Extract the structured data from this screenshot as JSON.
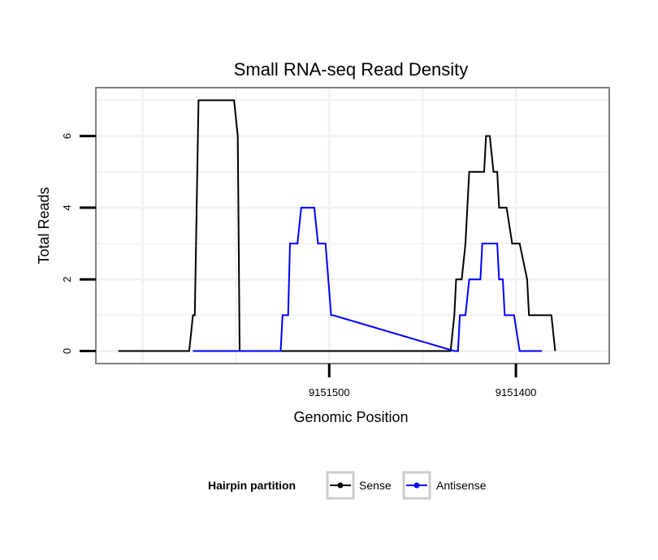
{
  "chart_data": {
    "type": "line",
    "title": "Small RNA-seq Read Density",
    "xlabel": "Genomic Position",
    "ylabel": "Total Reads",
    "x_reversed": true,
    "xlim": [
      9151625,
      9151350
    ],
    "ylim": [
      -0.35,
      7.35
    ],
    "x_ticks": [
      9151500,
      9151400
    ],
    "x_tick_labels": [
      "9151500",
      "9151400"
    ],
    "y_ticks": [
      0,
      2,
      4,
      6
    ],
    "y_tick_labels": [
      "0",
      "2",
      "4",
      "6"
    ],
    "grid": true,
    "legend_position": "bottom",
    "legend_title": "Hairpin partition",
    "series": [
      {
        "name": "Sense",
        "color": "#000000",
        "x": [
          9151613,
          9151575,
          9151573,
          9151572,
          9151570,
          9151551,
          9151549,
          9151548,
          9151528,
          9151435,
          9151433,
          9151432,
          9151429,
          9151427,
          9151425,
          9151417,
          9151416,
          9151414,
          9151412,
          9151410,
          9151409,
          9151406,
          9151405,
          9151402,
          9151401,
          9151399,
          9151398,
          9151394,
          9151393,
          9151389,
          9151388,
          9151381,
          9151379
        ],
        "y": [
          0,
          0,
          1,
          1,
          7,
          7,
          6,
          0,
          0,
          0,
          1,
          2,
          2,
          3,
          5,
          5,
          6,
          6,
          5,
          5,
          4,
          4,
          4,
          3,
          3,
          3,
          3,
          2,
          1,
          1,
          1,
          1,
          0
        ]
      },
      {
        "name": "Antisense",
        "color": "#0000ff",
        "x": [
          9151573,
          9151528,
          9151526,
          9151525,
          9151522,
          9151521,
          9151517,
          9151515,
          9151508,
          9151506,
          9151502,
          9151499,
          9151498,
          9151433,
          9151431,
          9151430,
          9151427,
          9151425,
          9151421,
          9151419,
          9151418,
          9151410,
          9151409,
          9151407,
          9151406,
          9151402,
          9151401,
          9151398,
          9151396,
          9151386
        ],
        "y": [
          0,
          0,
          0,
          1,
          1,
          3,
          3,
          4,
          4,
          3,
          3,
          1,
          1,
          0,
          0,
          1,
          1,
          2,
          2,
          2,
          3,
          3,
          2,
          2,
          1,
          1,
          1,
          0,
          0,
          0
        ]
      }
    ]
  }
}
